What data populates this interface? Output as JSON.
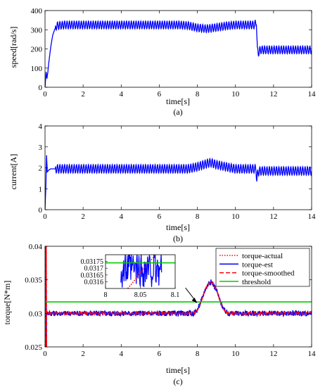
{
  "chart_data": [
    {
      "type": "line",
      "caption": "(a)",
      "xlabel": "time[s]",
      "ylabel": "speed[rad/s]",
      "xlim": [
        0,
        14
      ],
      "ylim": [
        0,
        400
      ],
      "xticks": [
        0,
        2,
        4,
        6,
        8,
        10,
        12,
        14
      ],
      "yticks": [
        0,
        100,
        200,
        300,
        400
      ],
      "grid": false,
      "series": [
        {
          "color": "#0000ff",
          "x": [
            0.0,
            0.06,
            0.1,
            0.15,
            0.2,
            0.25,
            0.3,
            0.4,
            0.5,
            0.6,
            1.0,
            2.0,
            3.0,
            4.0,
            5.0,
            6.0,
            7.0,
            7.5,
            8.0,
            8.5,
            9.0,
            9.5,
            10.0,
            10.5,
            11.0,
            11.1,
            11.15,
            11.2,
            11.3,
            12.0,
            13.0,
            14.0
          ],
          "y": [
            0,
            80,
            45,
            80,
            130,
            170,
            210,
            270,
            300,
            320,
            325,
            325,
            325,
            325,
            325,
            325,
            325,
            322,
            310,
            305,
            312,
            320,
            325,
            325,
            325,
            340,
            190,
            180,
            195,
            195,
            195,
            195
          ],
          "ripple_amplitude": 20,
          "ripple_period": 0.125
        }
      ]
    },
    {
      "type": "line",
      "caption": "(b)",
      "xlabel": "time[s]",
      "ylabel": "current[A]",
      "xlim": [
        0,
        14
      ],
      "ylim": [
        0,
        4
      ],
      "xticks": [
        0,
        2,
        4,
        6,
        8,
        10,
        12,
        14
      ],
      "yticks": [
        0,
        1,
        2,
        3,
        4
      ],
      "grid": false,
      "series": [
        {
          "color": "#0000ff",
          "x": [
            0.0,
            0.04,
            0.08,
            0.12,
            0.2,
            0.3,
            0.5,
            1.0,
            2.0,
            4.0,
            6.0,
            7.5,
            8.0,
            8.5,
            8.7,
            9.0,
            9.5,
            10.0,
            11.0,
            11.08,
            11.12,
            11.18,
            11.3,
            12.0,
            14.0
          ],
          "y": [
            0.0,
            1.0,
            2.6,
            1.8,
            1.9,
            1.95,
            1.95,
            1.95,
            1.95,
            1.95,
            1.95,
            1.95,
            2.05,
            2.2,
            2.25,
            2.15,
            2.05,
            1.95,
            1.95,
            1.95,
            1.4,
            1.8,
            1.85,
            1.85,
            1.85
          ],
          "ripple_amplitude": 0.2,
          "ripple_period": 0.125
        }
      ]
    },
    {
      "type": "line",
      "caption": "(c)",
      "xlabel": "time[s]",
      "ylabel": "torque[N*m]",
      "xlim": [
        0,
        14
      ],
      "ylim": [
        0.025,
        0.04
      ],
      "xticks": [
        0,
        2,
        4,
        6,
        8,
        10,
        12,
        14
      ],
      "yticks": [
        0.025,
        0.03,
        0.035,
        0.04
      ],
      "ytick_labels": [
        "0.025",
        "0.03",
        "0.035",
        "0.04"
      ],
      "grid": false,
      "legend": "top-right",
      "series": [
        {
          "name": "torque-actual",
          "color": "#ff0000",
          "style": "dotted",
          "x": [
            0,
            7.8,
            8.0,
            8.2,
            8.4,
            8.6,
            8.7,
            8.8,
            9.0,
            9.2,
            9.4,
            9.6,
            14
          ],
          "y": [
            0.03,
            0.03,
            0.0305,
            0.0318,
            0.0335,
            0.0345,
            0.0347,
            0.0345,
            0.0335,
            0.0318,
            0.0305,
            0.03,
            0.03
          ]
        },
        {
          "name": "torque-est",
          "color": "#0000ff",
          "style": "solid",
          "x": [
            0,
            7.8,
            8.0,
            8.2,
            8.4,
            8.6,
            8.7,
            8.8,
            9.0,
            9.2,
            9.4,
            9.6,
            14
          ],
          "y": [
            0.03,
            0.03,
            0.0305,
            0.0318,
            0.0335,
            0.0345,
            0.0347,
            0.0345,
            0.0335,
            0.0318,
            0.0305,
            0.03,
            0.03
          ],
          "noise_amplitude": 0.0004
        },
        {
          "name": "torque-smoothed",
          "color": "#ff0000",
          "style": "dashed",
          "x": [
            0,
            7.8,
            8.0,
            8.2,
            8.4,
            8.6,
            8.7,
            8.8,
            9.0,
            9.2,
            9.4,
            9.6,
            14
          ],
          "y": [
            0.03,
            0.03,
            0.0305,
            0.0318,
            0.0335,
            0.0345,
            0.0347,
            0.0345,
            0.0335,
            0.0318,
            0.0305,
            0.03,
            0.03
          ],
          "noise_amplitude": 0.0001
        },
        {
          "name": "threshold",
          "color": "#00cc00",
          "style": "solid",
          "x": [
            0,
            14
          ],
          "y": [
            0.0317,
            0.0317
          ]
        }
      ],
      "inset": {
        "xlim": [
          8.0,
          8.1
        ],
        "ylim": [
          0.03155,
          0.0318
        ],
        "xticks": [
          8,
          8.05,
          8.1
        ],
        "xtick_labels": [
          "8",
          "8.05",
          "8.1"
        ],
        "yticks": [
          0.0316,
          0.03165,
          0.0317,
          0.03175
        ],
        "ytick_labels": [
          "0.0316",
          "0.03165",
          "0.0317",
          "0.03175"
        ],
        "threshold": 0.03174,
        "actual_line": {
          "x": [
            8.032,
            8.072
          ],
          "y": [
            0.03155,
            0.0318
          ]
        }
      },
      "annotation": {
        "type": "arrow",
        "target_x": 8.0,
        "target_y": 0.0315
      }
    }
  ]
}
